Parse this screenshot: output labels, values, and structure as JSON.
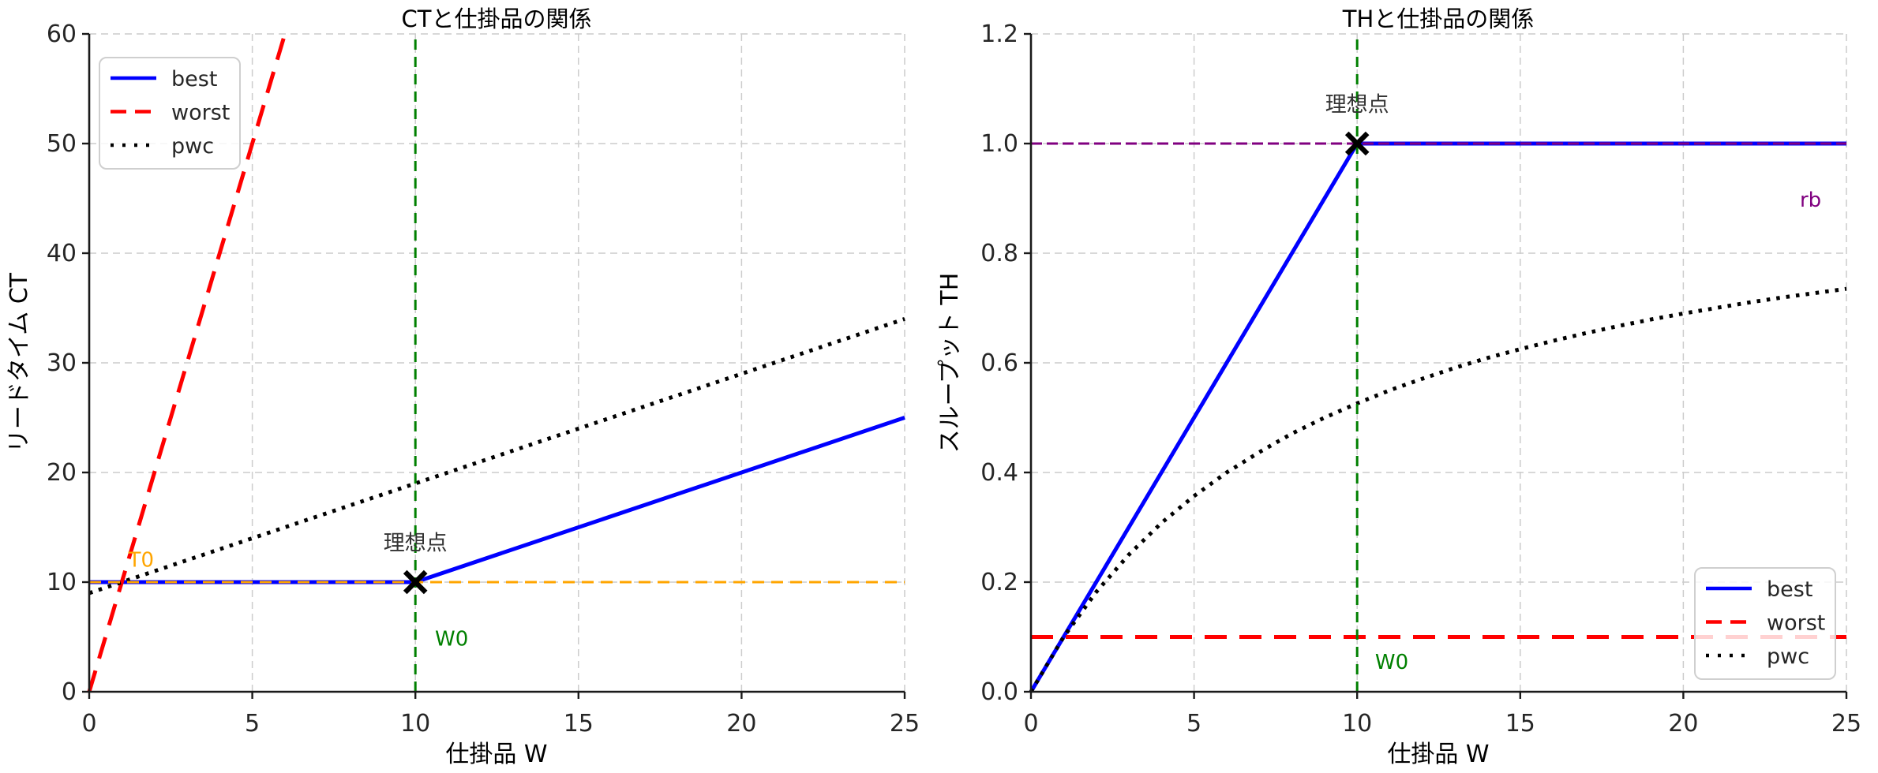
{
  "figure": {
    "background": "#ffffff",
    "grid_color": "#cccccc",
    "spine_color": "#1a1a1a",
    "annotation_color": "#333333"
  },
  "chart_data": [
    {
      "type": "line",
      "title": "CTと仕掛品の関係",
      "xlabel": "仕掛品 W",
      "ylabel": "リードタイム CT",
      "xlim": [
        0,
        25
      ],
      "ylim": [
        0,
        60
      ],
      "xticks": {
        "values": [
          0,
          5,
          10,
          15,
          20,
          25
        ],
        "labels": [
          "0",
          "5",
          "10",
          "15",
          "20",
          "25"
        ]
      },
      "yticks": {
        "values": [
          0,
          10,
          20,
          30,
          40,
          50,
          60
        ],
        "labels": [
          "0",
          "10",
          "20",
          "30",
          "40",
          "50",
          "60"
        ]
      },
      "grid": true,
      "legend": {
        "position": "upper-left",
        "entries": [
          "best",
          "worst",
          "pwc"
        ]
      },
      "series": [
        {
          "name": "best",
          "color": "#0000ff",
          "line": "solid",
          "x": [
            0,
            10,
            25
          ],
          "y": [
            10,
            10,
            25
          ]
        },
        {
          "name": "worst",
          "color": "#ff0000",
          "line": "dashed",
          "x": [
            0,
            6
          ],
          "y": [
            0,
            60
          ]
        },
        {
          "name": "pwc",
          "color": "#000000",
          "line": "dotted",
          "x": [
            0,
            25
          ],
          "y": [
            9,
            34
          ]
        }
      ],
      "ref_lines": [
        {
          "label": "T0",
          "axis": "y",
          "value": 10,
          "color": "#ffa500",
          "label_x": 1.2,
          "label_y": 11.4,
          "anchor": "start"
        },
        {
          "label": "W0",
          "axis": "x",
          "value": 10,
          "color": "#008000",
          "label_x": 10.6,
          "label_y": 4.2,
          "anchor": "start"
        }
      ],
      "annotation": {
        "text": "理想点",
        "marker": "x",
        "x": 10,
        "y": 10,
        "text_x": 10,
        "text_y": 12.9
      }
    },
    {
      "type": "line",
      "title": "THと仕掛品の関係",
      "xlabel": "仕掛品 W",
      "ylabel": "スループット TH",
      "xlim": [
        0,
        25
      ],
      "ylim": [
        0,
        1.2
      ],
      "xticks": {
        "values": [
          0,
          5,
          10,
          15,
          20,
          25
        ],
        "labels": [
          "0",
          "5",
          "10",
          "15",
          "20",
          "25"
        ]
      },
      "yticks": {
        "values": [
          0,
          0.2,
          0.4,
          0.6,
          0.8,
          1.0,
          1.2
        ],
        "labels": [
          "0.0",
          "0.2",
          "0.4",
          "0.6",
          "0.8",
          "1.0",
          "1.2"
        ]
      },
      "grid": true,
      "legend": {
        "position": "lower-right",
        "entries": [
          "best",
          "worst",
          "pwc"
        ]
      },
      "series": [
        {
          "name": "best",
          "color": "#0000ff",
          "line": "solid",
          "x": [
            0,
            10,
            25
          ],
          "y": [
            0,
            1.0,
            1.0
          ]
        },
        {
          "name": "worst",
          "color": "#ff0000",
          "line": "dashed",
          "x": [
            0,
            25
          ],
          "y": [
            0.1,
            0.1
          ]
        },
        {
          "name": "pwc",
          "color": "#000000",
          "line": "dotted",
          "x": [
            0,
            1,
            2,
            3,
            4,
            5,
            6,
            7,
            8,
            9,
            10,
            11,
            12,
            13,
            14,
            15,
            16,
            17,
            18,
            19,
            20,
            21,
            22,
            23,
            24,
            25
          ],
          "y": [
            0,
            0.1,
            0.182,
            0.25,
            0.308,
            0.357,
            0.4,
            0.437,
            0.471,
            0.5,
            0.526,
            0.55,
            0.571,
            0.591,
            0.609,
            0.625,
            0.64,
            0.654,
            0.667,
            0.679,
            0.69,
            0.7,
            0.71,
            0.719,
            0.727,
            0.735
          ]
        }
      ],
      "ref_lines": [
        {
          "label": "rb",
          "axis": "y",
          "value": 1.0,
          "color": "#800080",
          "label_x": 23.9,
          "label_y": 0.885,
          "anchor": "middle"
        },
        {
          "label": "W0",
          "axis": "x",
          "value": 10,
          "color": "#008000",
          "label_x": 10.55,
          "label_y": 0.042,
          "anchor": "start"
        }
      ],
      "annotation": {
        "text": "理想点",
        "marker": "x",
        "x": 10,
        "y": 1.0,
        "text_x": 10,
        "text_y": 1.058
      }
    }
  ]
}
